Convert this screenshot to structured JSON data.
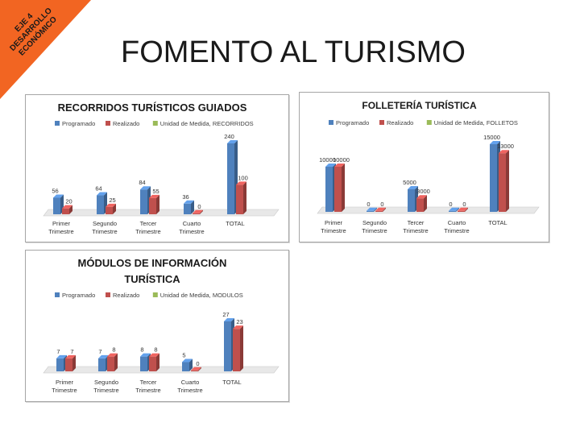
{
  "banner": {
    "line1": "EJE 4",
    "line2": "DESARROLLO",
    "line3": "ECONÓMICO",
    "color": "#f26522"
  },
  "slide_title": "FOMENTO AL TURISMO",
  "colors": {
    "programado": "#4f81bd",
    "realizado": "#c0504d",
    "unidad": "#9bbb59"
  },
  "chart_data": [
    {
      "type": "bar",
      "title": "RECORRIDOS TURÍSTICOS GUIADOS",
      "categories": [
        "Primer Trimestre",
        "Segundo Trimestre",
        "Tercer Trimestre",
        "Cuarto Trimestre",
        "TOTAL"
      ],
      "series": [
        {
          "name": "Programado",
          "values": [
            56,
            64,
            84,
            36,
            240
          ]
        },
        {
          "name": "Realizado",
          "values": [
            20,
            25,
            55,
            0,
            100
          ]
        },
        {
          "name": "Unidad de Medida, RECORRIDOS",
          "values": [
            0,
            0,
            0,
            0,
            0
          ]
        }
      ],
      "value_labels": {
        "Programado": [
          "56",
          "64",
          "84",
          "36",
          "240"
        ],
        "Realizado": [
          "20",
          "25",
          "55",
          "0",
          "100"
        ]
      },
      "ylim": [
        0,
        240
      ],
      "legend": "top"
    },
    {
      "type": "bar",
      "title": "FOLLETERÍA TURÍSTICA",
      "categories": [
        "Primer Trimestre",
        "Segundo Trimestre",
        "Tercer Trimestre",
        "Cuarto Trimestre",
        "TOTAL"
      ],
      "series": [
        {
          "name": "Programado",
          "values": [
            10000,
            0,
            5000,
            0,
            15000
          ]
        },
        {
          "name": "Realizado",
          "values": [
            10000,
            0,
            3000,
            0,
            13000
          ]
        },
        {
          "name": "Unidad de Medida, FOLLETOS",
          "values": [
            0,
            0,
            0,
            0,
            0
          ]
        }
      ],
      "value_labels": {
        "Programado": [
          "10000",
          "0",
          "5000",
          "0",
          "15000"
        ],
        "Realizado": [
          "10000",
          "0",
          "3000",
          "0",
          "13000"
        ]
      },
      "ylim": [
        0,
        15000
      ],
      "legend": "top"
    },
    {
      "type": "bar",
      "title": "MÓDULOS DE INFORMACIÓN TURÍSTICA",
      "categories": [
        "Primer Trimestre",
        "Segundo Trimestre",
        "Tercer Trimestre",
        "Cuarto Trimestre",
        "TOTAL"
      ],
      "series": [
        {
          "name": "Programado",
          "values": [
            7,
            7,
            8,
            5,
            27
          ]
        },
        {
          "name": "Realizado",
          "values": [
            7,
            8,
            8,
            0,
            23
          ]
        },
        {
          "name": "Unidad de Medida, MODULOS",
          "values": [
            0,
            0,
            0,
            0,
            0
          ]
        }
      ],
      "value_labels": {
        "Programado": [
          "7",
          "7",
          "8",
          "5",
          "27"
        ],
        "Realizado": [
          "7",
          "8",
          "8",
          "0",
          "23"
        ]
      },
      "ylim": [
        0,
        27
      ],
      "legend": "top"
    }
  ]
}
